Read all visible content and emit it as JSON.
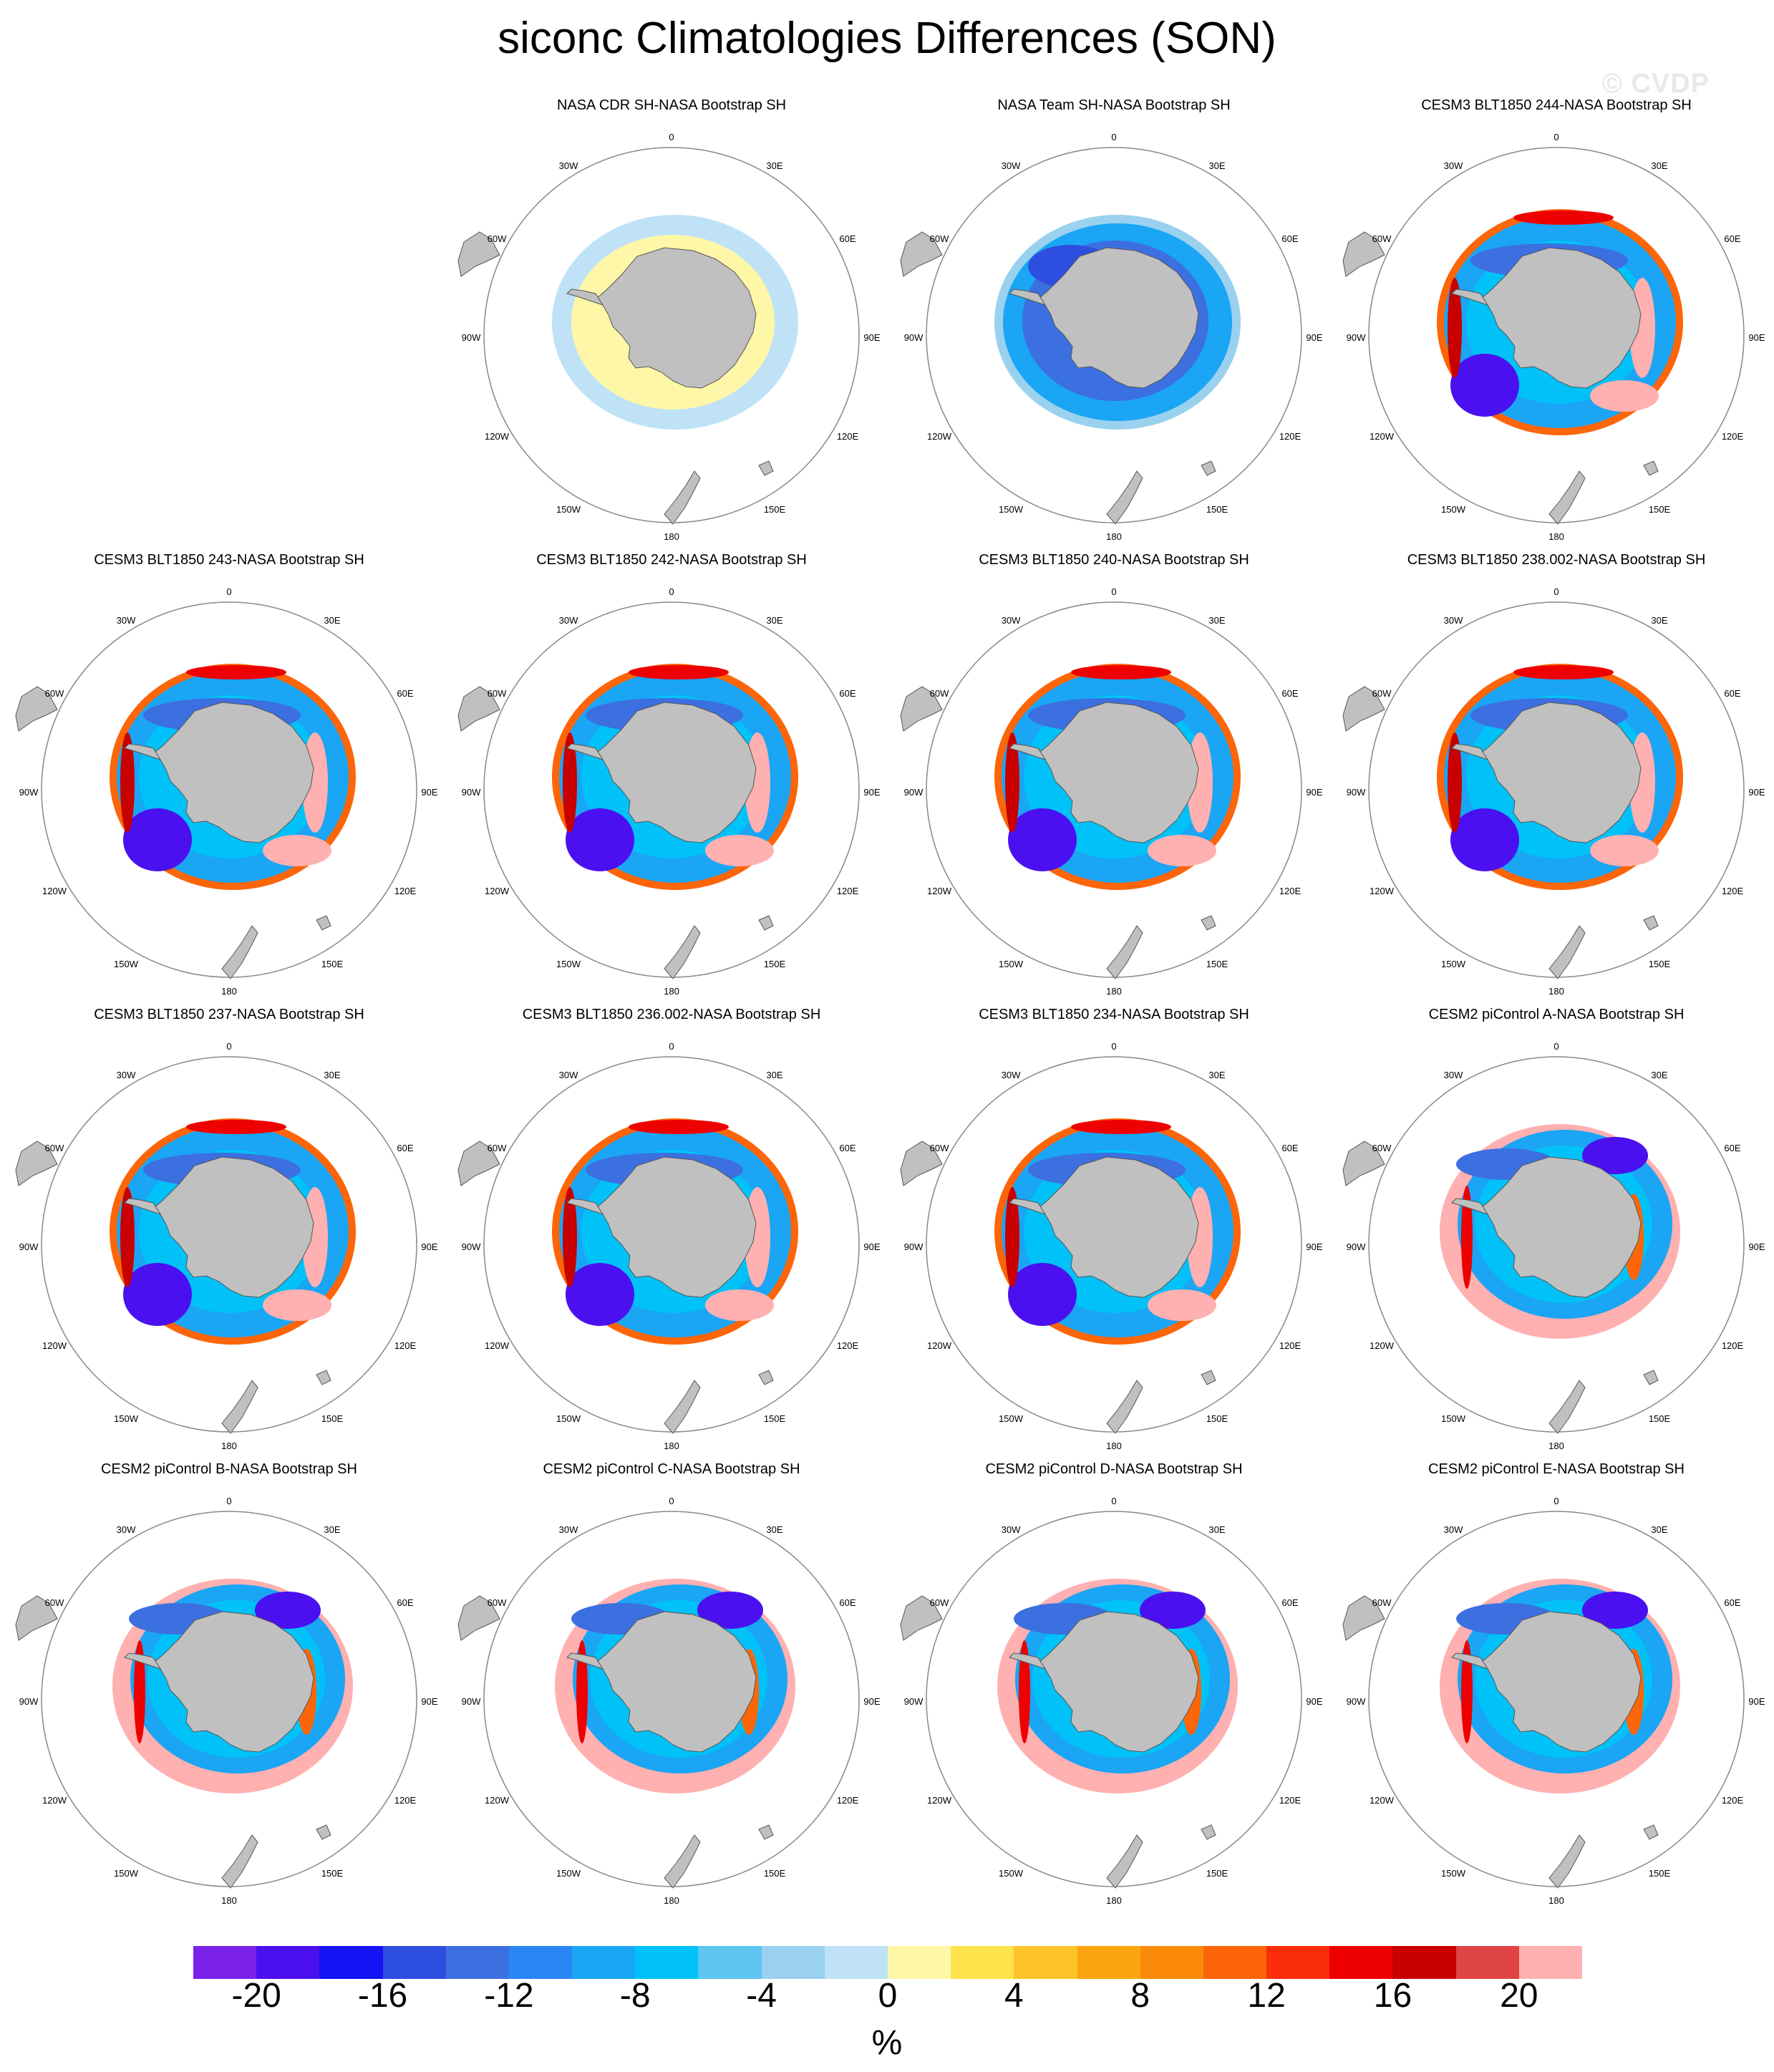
{
  "title": "siconc Climatologies Differences (SON)",
  "watermark": "© CVDP",
  "map_labels": {
    "lon_top": "0",
    "lon_bottom": "180",
    "lon_30W": "30W",
    "lon_30E": "30E",
    "lon_60W": "60W",
    "lon_60E": "60E",
    "lon_90W": "90W",
    "lon_90E": "90E",
    "lon_120W": "120W",
    "lon_120E": "120E",
    "lon_150W": "150W",
    "lon_150E": "150E"
  },
  "panels": [
    {
      "title": "NASA CDR SH-NASA Bootstrap SH",
      "pattern": "cdr"
    },
    {
      "title": "NASA Team SH-NASA Bootstrap SH",
      "pattern": "team"
    },
    {
      "title": "CESM3 BLT1850 244-NASA Bootstrap SH",
      "pattern": "cesm3"
    },
    {
      "title": "CESM3 BLT1850 243-NASA Bootstrap SH",
      "pattern": "cesm3"
    },
    {
      "title": "CESM3 BLT1850 242-NASA Bootstrap SH",
      "pattern": "cesm3"
    },
    {
      "title": "CESM3 BLT1850 240-NASA Bootstrap SH",
      "pattern": "cesm3"
    },
    {
      "title": "CESM3 BLT1850 238.002-NASA Bootstrap SH",
      "pattern": "cesm3"
    },
    {
      "title": "CESM3 BLT1850 237-NASA Bootstrap SH",
      "pattern": "cesm3"
    },
    {
      "title": "CESM3 BLT1850 236.002-NASA Bootstrap SH",
      "pattern": "cesm3"
    },
    {
      "title": "CESM3 BLT1850 234-NASA Bootstrap SH",
      "pattern": "cesm3"
    },
    {
      "title": "CESM2 piControl A-NASA Bootstrap SH",
      "pattern": "cesm2"
    },
    {
      "title": "CESM2 piControl B-NASA Bootstrap SH",
      "pattern": "cesm2"
    },
    {
      "title": "CESM2 piControl C-NASA Bootstrap SH",
      "pattern": "cesm2"
    },
    {
      "title": "CESM2 piControl D-NASA Bootstrap SH",
      "pattern": "cesm2"
    },
    {
      "title": "CESM2 piControl E-NASA Bootstrap SH",
      "pattern": "cesm2"
    }
  ],
  "colorbar": {
    "colors": [
      "#7b22e8",
      "#4a10f0",
      "#1414f5",
      "#2e4ee0",
      "#3c6fe0",
      "#2b86f5",
      "#1aa5f5",
      "#00c2f8",
      "#5cc6f0",
      "#9ad1ef",
      "#bfe2f6",
      "#fff7a8",
      "#fde24a",
      "#fcc429",
      "#fca50f",
      "#fc8a0a",
      "#fc6508",
      "#fc2d0a",
      "#ee0000",
      "#c80000",
      "#df4444",
      "#ffb0b0"
    ],
    "labels": [
      "-20",
      "-16",
      "-12",
      "-8",
      "-4",
      "0",
      "4",
      "8",
      "12",
      "16",
      "20"
    ],
    "unit": "%"
  },
  "colors": {
    "land": "#c0c0c0",
    "land_border": "#555555",
    "circle": "#888888"
  }
}
